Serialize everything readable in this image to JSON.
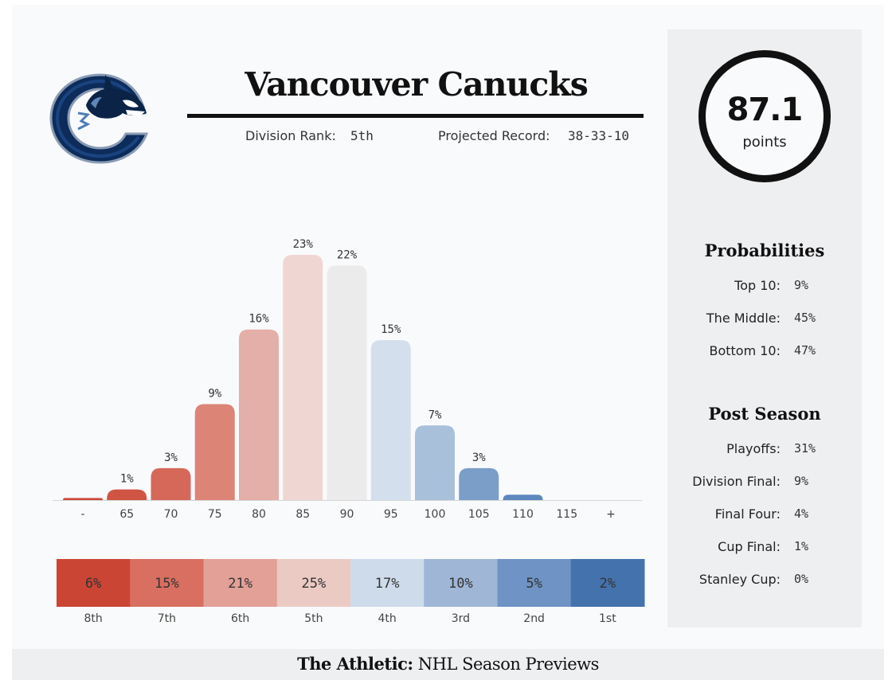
{
  "team": {
    "name": "Vancouver Canucks",
    "division_rank_label": "Division Rank:",
    "division_rank": "5th",
    "projected_record_label": "Projected Record:",
    "projected_record": "38-33-10"
  },
  "points": {
    "value": "87.1",
    "label": "points"
  },
  "probabilities": {
    "heading": "Probabilities",
    "rows": [
      {
        "label": "Top 10:",
        "value": "9%"
      },
      {
        "label": "The Middle:",
        "value": "45%"
      },
      {
        "label": "Bottom 10:",
        "value": "47%"
      }
    ]
  },
  "post_season": {
    "heading": "Post Season",
    "rows": [
      {
        "label": "Playoffs:",
        "value": "31%"
      },
      {
        "label": "Division Final:",
        "value": "9%"
      },
      {
        "label": "Final Four:",
        "value": "4%"
      },
      {
        "label": "Cup Final:",
        "value": "1%"
      },
      {
        "label": "Stanley Cup:",
        "value": "0%"
      }
    ]
  },
  "footer": {
    "brand": "The Athletic:",
    "text": " NHL Season Previews"
  },
  "chart_data": [
    {
      "type": "bar",
      "categories": [
        "-",
        "65",
        "70",
        "75",
        "80",
        "85",
        "90",
        "95",
        "100",
        "105",
        "110",
        "115",
        "+"
      ],
      "values": [
        0.2,
        1,
        3,
        9,
        16,
        23,
        22,
        15,
        7,
        3,
        0.5,
        0,
        0
      ],
      "data_labels": [
        "",
        "1%",
        "3%",
        "9%",
        "16%",
        "23%",
        "22%",
        "15%",
        "7%",
        "3%",
        "",
        "",
        ""
      ],
      "colors": [
        "#cc4a3a",
        "#cf5443",
        "#d6685a",
        "#dc8476",
        "#e4afa8",
        "#f0d6d2",
        "#ebebeb",
        "#d3dfec",
        "#a9c0db",
        "#7a9ec8",
        "#5d88bf",
        "#4a79b5",
        "#4a79b5"
      ],
      "value_unit": "%",
      "ylim": [
        0,
        23
      ],
      "grid": false
    },
    {
      "type": "table",
      "categories": [
        "8th",
        "7th",
        "6th",
        "5th",
        "4th",
        "3rd",
        "2nd",
        "1st"
      ],
      "values": [
        6,
        15,
        21,
        25,
        17,
        10,
        5,
        2
      ],
      "data_labels": [
        "6%",
        "15%",
        "21%",
        "25%",
        "17%",
        "10%",
        "5%",
        "2%"
      ],
      "colors": [
        "#cb4535",
        "#d86f60",
        "#e2a097",
        "#eccac4",
        "#cedbeb",
        "#9fb6d6",
        "#6e93c4",
        "#4472ad"
      ]
    }
  ]
}
